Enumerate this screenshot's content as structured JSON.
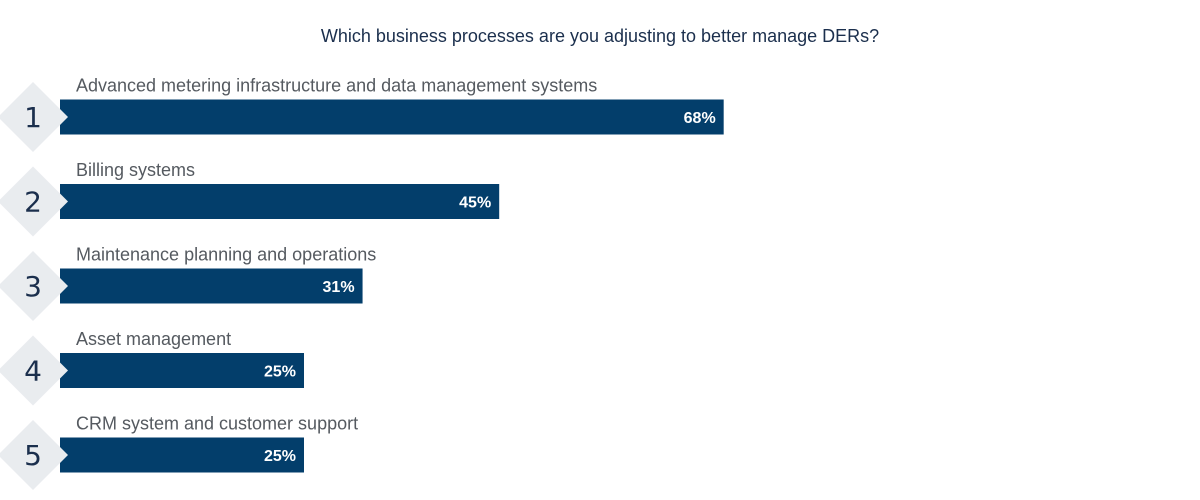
{
  "chart_data": {
    "type": "bar",
    "title": "Which business processes are you adjusting to better manage DERs?",
    "ranks": [
      "1",
      "2",
      "3",
      "4",
      "5"
    ],
    "categories": [
      "Advanced metering infrastructure and data management systems",
      "Billing systems",
      "Maintenance planning and operations",
      "Asset management",
      "CRM system and customer support"
    ],
    "values": [
      68,
      45,
      31,
      25,
      25
    ],
    "value_labels": [
      "68%",
      "45%",
      "31%",
      "25%",
      "25%"
    ],
    "xlim": [
      0,
      100
    ],
    "grid": false
  },
  "colors": {
    "bar": "#033e6b",
    "badge": "#e9ecef",
    "title": "#1b2f4d",
    "label": "#555a60"
  }
}
